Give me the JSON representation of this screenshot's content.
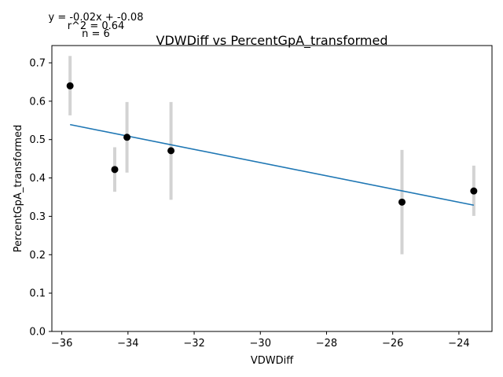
{
  "chart_data": {
    "type": "scatter",
    "title": "VDWDiff vs PercentGpA_transformed",
    "xlabel": "VDWDiff",
    "ylabel": "PercentGpA_transformed",
    "xlim": [
      -36.3,
      -23.0
    ],
    "ylim": [
      0.0,
      0.745
    ],
    "xticks": [
      -36,
      -34,
      -32,
      -30,
      -28,
      -26,
      -24
    ],
    "xtick_labels": [
      "−36",
      "−34",
      "−32",
      "−30",
      "−28",
      "−26",
      "−24"
    ],
    "yticks": [
      0.0,
      0.1,
      0.2,
      0.3,
      0.4,
      0.5,
      0.6,
      0.7
    ],
    "ytick_labels": [
      "0.0",
      "0.1",
      "0.2",
      "0.3",
      "0.4",
      "0.5",
      "0.6",
      "0.7"
    ],
    "grid": false,
    "points": [
      {
        "x": -35.75,
        "y": 0.64,
        "err_low": 0.563,
        "err_high": 0.718
      },
      {
        "x": -34.4,
        "y": 0.422,
        "err_low": 0.364,
        "err_high": 0.48
      },
      {
        "x": -34.03,
        "y": 0.506,
        "err_low": 0.414,
        "err_high": 0.598
      },
      {
        "x": -32.7,
        "y": 0.471,
        "err_low": 0.343,
        "err_high": 0.598
      },
      {
        "x": -25.72,
        "y": 0.337,
        "err_low": 0.201,
        "err_high": 0.473
      },
      {
        "x": -23.55,
        "y": 0.366,
        "err_low": 0.301,
        "err_high": 0.432
      }
    ],
    "fit_line": {
      "x": [
        -35.75,
        -23.55
      ],
      "y": [
        0.539,
        0.329
      ]
    },
    "annotations": [
      "y = -0.02x + -0.08",
      "r^2 = 0.64",
      "n = 6"
    ],
    "colors": {
      "points": "#000000",
      "errorbars": "#d3d3d3",
      "fit": "#1f77b4"
    }
  }
}
